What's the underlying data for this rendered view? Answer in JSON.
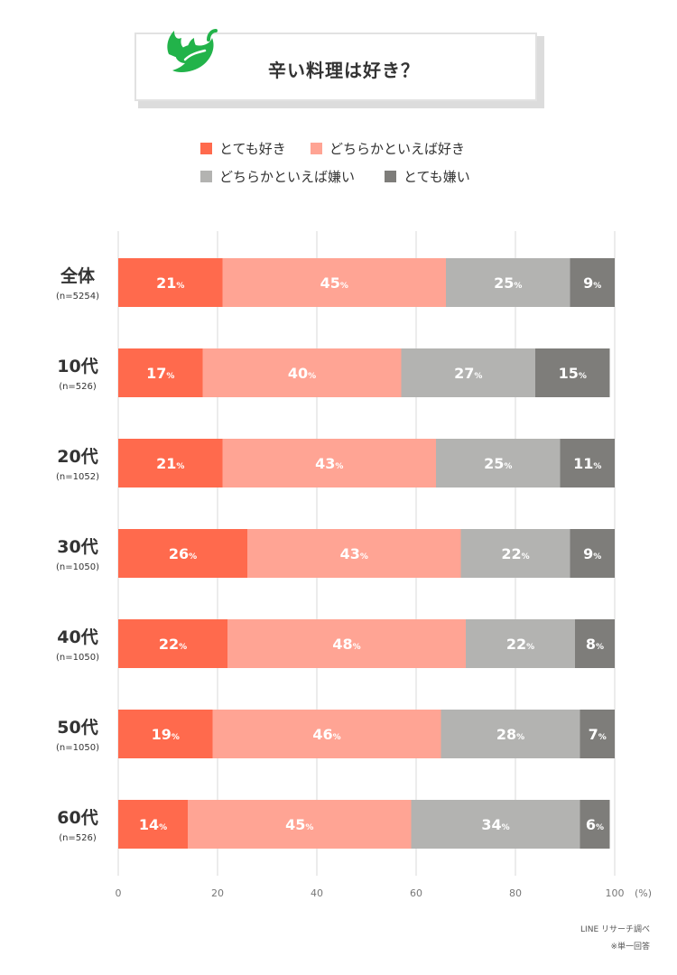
{
  "title": "辛い料理は好き？",
  "icon": "chili-pepper-icon",
  "colors": {
    "love": "#ff6a4d",
    "like": "#ffa494",
    "dislike": "#b3b3b1",
    "hate": "#7e7d7a",
    "pepper": "#22b34a"
  },
  "chart_data": {
    "type": "bar",
    "orientation": "horizontal-stacked-100",
    "title": "辛い料理は好き？",
    "xlim": [
      0,
      100
    ],
    "xticks": [
      "0",
      "20",
      "40",
      "60",
      "80",
      "100"
    ],
    "xunit": "(%)",
    "grid": true,
    "legend_placement": "top",
    "unit_suffix": "%",
    "categories": [
      {
        "label": "全体",
        "n": "(n=5254)"
      },
      {
        "label": "10代",
        "n": "(n=526)"
      },
      {
        "label": "20代",
        "n": "(n=1052)"
      },
      {
        "label": "30代",
        "n": "(n=1050)"
      },
      {
        "label": "40代",
        "n": "(n=1050)"
      },
      {
        "label": "50代",
        "n": "(n=1050)"
      },
      {
        "label": "60代",
        "n": "(n=526)"
      }
    ],
    "series": [
      {
        "name": "とても好き",
        "color_key": "love",
        "values": [
          21,
          17,
          21,
          26,
          22,
          19,
          14
        ]
      },
      {
        "name": "どちらかといえば好き",
        "color_key": "like",
        "values": [
          45,
          40,
          43,
          43,
          48,
          46,
          45
        ]
      },
      {
        "name": "どちらかといえば嫌い",
        "color_key": "dislike",
        "values": [
          25,
          27,
          25,
          22,
          22,
          28,
          34
        ]
      },
      {
        "name": "とても嫌い",
        "color_key": "hate",
        "values": [
          9,
          15,
          11,
          9,
          8,
          7,
          6
        ]
      }
    ]
  },
  "footer": {
    "source": "LINE リサーチ調べ",
    "note": "※単一回答"
  }
}
